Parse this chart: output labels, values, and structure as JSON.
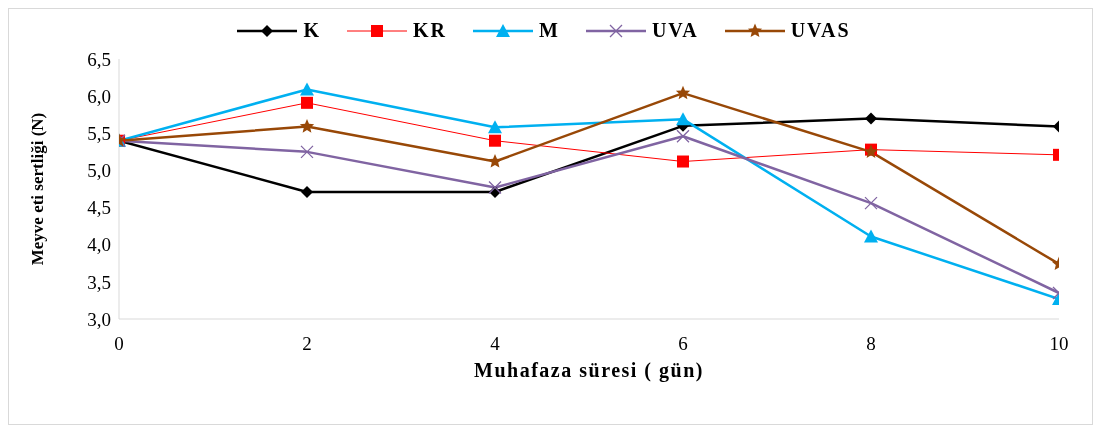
{
  "chart_data": {
    "type": "line",
    "xlabel": "Muhafaza  süresi ( gün)",
    "ylabel": "Meyve  eti sertliği (N)",
    "x": [
      0,
      2,
      4,
      6,
      8,
      10
    ],
    "series": [
      {
        "name": "K",
        "color": "#000000",
        "marker": "diamond",
        "values": [
          5.4,
          4.71,
          4.71,
          5.6,
          5.7,
          5.59
        ]
      },
      {
        "name": "KR",
        "color": "#ff0000",
        "marker": "square",
        "values": [
          5.4,
          5.91,
          5.4,
          5.12,
          5.28,
          5.21
        ]
      },
      {
        "name": "M",
        "color": "#00b0f0",
        "marker": "triangle",
        "values": [
          5.4,
          6.09,
          5.58,
          5.69,
          4.11,
          3.27
        ]
      },
      {
        "name": "UVA",
        "color": "#8064a2",
        "marker": "cross",
        "values": [
          5.4,
          5.25,
          4.77,
          5.46,
          4.56,
          3.35
        ]
      },
      {
        "name": "UVAS",
        "color": "#984807",
        "marker": "star",
        "values": [
          5.4,
          5.59,
          5.12,
          6.04,
          5.25,
          3.74
        ]
      }
    ],
    "xlim": [
      0,
      10
    ],
    "xticks": [
      0,
      2,
      4,
      6,
      8,
      10
    ],
    "ylim": [
      3,
      6.5
    ],
    "yticks": [
      {
        "value": 3,
        "label": "3,0"
      },
      {
        "value": 3.5,
        "label": "3,5"
      },
      {
        "value": 4,
        "label": "4,0"
      },
      {
        "value": 4.5,
        "label": "4,5"
      },
      {
        "value": 5,
        "label": "5,0"
      },
      {
        "value": 5.5,
        "label": "5,5"
      },
      {
        "value": 6,
        "label": "6,0"
      },
      {
        "value": 6.5,
        "label": "6,5"
      }
    ],
    "grid": false,
    "legend": "top",
    "line_style": "solid"
  }
}
